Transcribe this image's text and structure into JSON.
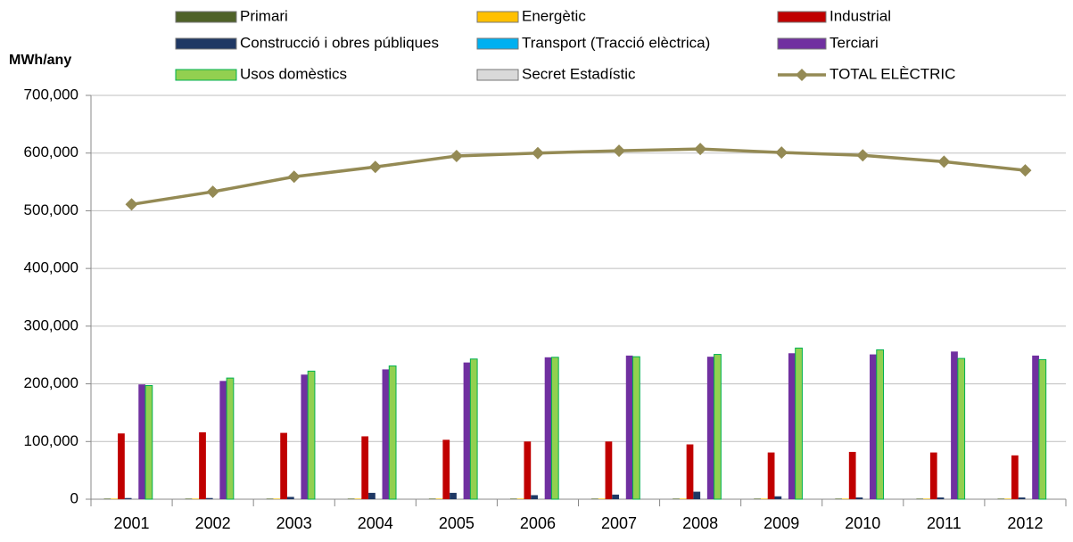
{
  "chart_data": {
    "type": "bar",
    "y_label": "MWh/any",
    "categories": [
      "2001",
      "2002",
      "2003",
      "2004",
      "2005",
      "2006",
      "2007",
      "2008",
      "2009",
      "2010",
      "2011",
      "2012"
    ],
    "series": [
      {
        "name": "Primari",
        "color": "#4f6228",
        "values": [
          1000,
          1000,
          1000,
          1000,
          1000,
          1000,
          1000,
          1000,
          1000,
          1000,
          1000,
          1000
        ]
      },
      {
        "name": "Energètic",
        "color": "#ffc000",
        "values": [
          1000,
          1000,
          1000,
          1000,
          1000,
          1000,
          1000,
          1000,
          1000,
          1000,
          1000,
          1000
        ]
      },
      {
        "name": "Industrial",
        "color": "#c00000",
        "values": [
          114000,
          116000,
          115000,
          109000,
          103000,
          100000,
          100000,
          95000,
          81000,
          82000,
          81000,
          76000
        ]
      },
      {
        "name": "Construcció i obres públiques",
        "color": "#1f3864",
        "values": [
          2000,
          2000,
          4000,
          11000,
          11000,
          7000,
          8000,
          13000,
          5000,
          3000,
          3000,
          3000
        ]
      },
      {
        "name": "Transport (Tracció elèctrica)",
        "color": "#00b0f0",
        "values": [
          0,
          0,
          0,
          0,
          0,
          0,
          0,
          0,
          0,
          0,
          0,
          0
        ]
      },
      {
        "name": "Terciari",
        "color": "#7030a0",
        "values": [
          199000,
          205000,
          216000,
          225000,
          237000,
          246000,
          249000,
          247000,
          253000,
          251000,
          256000,
          249000
        ]
      },
      {
        "name": "Usos domèstics",
        "color": "#92d050",
        "values": [
          197000,
          210000,
          222000,
          231000,
          243000,
          246000,
          247000,
          251000,
          262000,
          259000,
          244000,
          242000
        ]
      },
      {
        "name": "Secret Estadístic",
        "color": "#d9d9d9",
        "values": [
          0,
          0,
          0,
          0,
          0,
          0,
          0,
          0,
          0,
          0,
          0,
          0
        ]
      },
      {
        "name": "TOTAL ELÈCTRIC",
        "color": "#948a54",
        "type": "line",
        "values": [
          511000,
          533000,
          559000,
          576000,
          595000,
          600000,
          604000,
          607000,
          601000,
          596000,
          585000,
          570000
        ]
      }
    ],
    "ylim": [
      0,
      700000
    ],
    "yticks": [
      0,
      {
        "value": 100000,
        "label": "100,000"
      },
      {
        "value": 200000,
        "label": "200,000"
      },
      {
        "value": 300000,
        "label": "300,000"
      },
      {
        "value": 400000,
        "label": "400,000"
      },
      {
        "value": 500000,
        "label": "500,000"
      },
      {
        "value": 600000,
        "label": "600,000"
      },
      {
        "value": 700000,
        "label": "700,000"
      }
    ],
    "grid": true
  }
}
